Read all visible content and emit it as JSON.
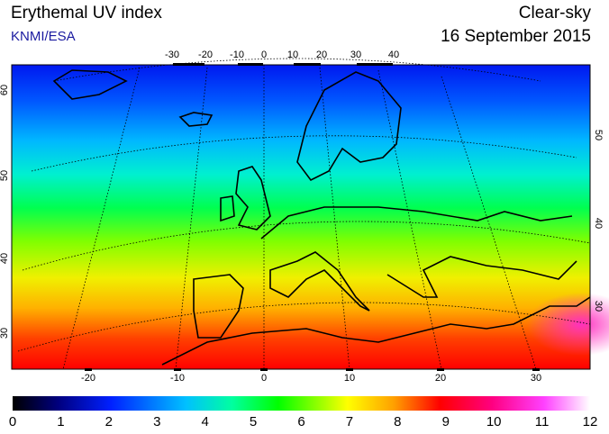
{
  "header": {
    "title": "Erythemal UV index",
    "source": "KNMI/ESA",
    "condition": "Clear-sky",
    "date": "16 September 2015"
  },
  "map": {
    "top_ticks": [
      "-30",
      "-20",
      "-10",
      "0",
      "10",
      "20",
      "30",
      "40"
    ],
    "bottom_ticks": [
      "-20",
      "-10",
      "0",
      "10",
      "20",
      "30"
    ],
    "left_ticks": [
      "60",
      "50",
      "40",
      "30"
    ],
    "right_ticks": [
      "50",
      "40",
      "30"
    ]
  },
  "colorbar": {
    "ticks": [
      "0",
      "1",
      "2",
      "3",
      "4",
      "5",
      "6",
      "7",
      "8",
      "9",
      "10",
      "11",
      "12"
    ]
  }
}
